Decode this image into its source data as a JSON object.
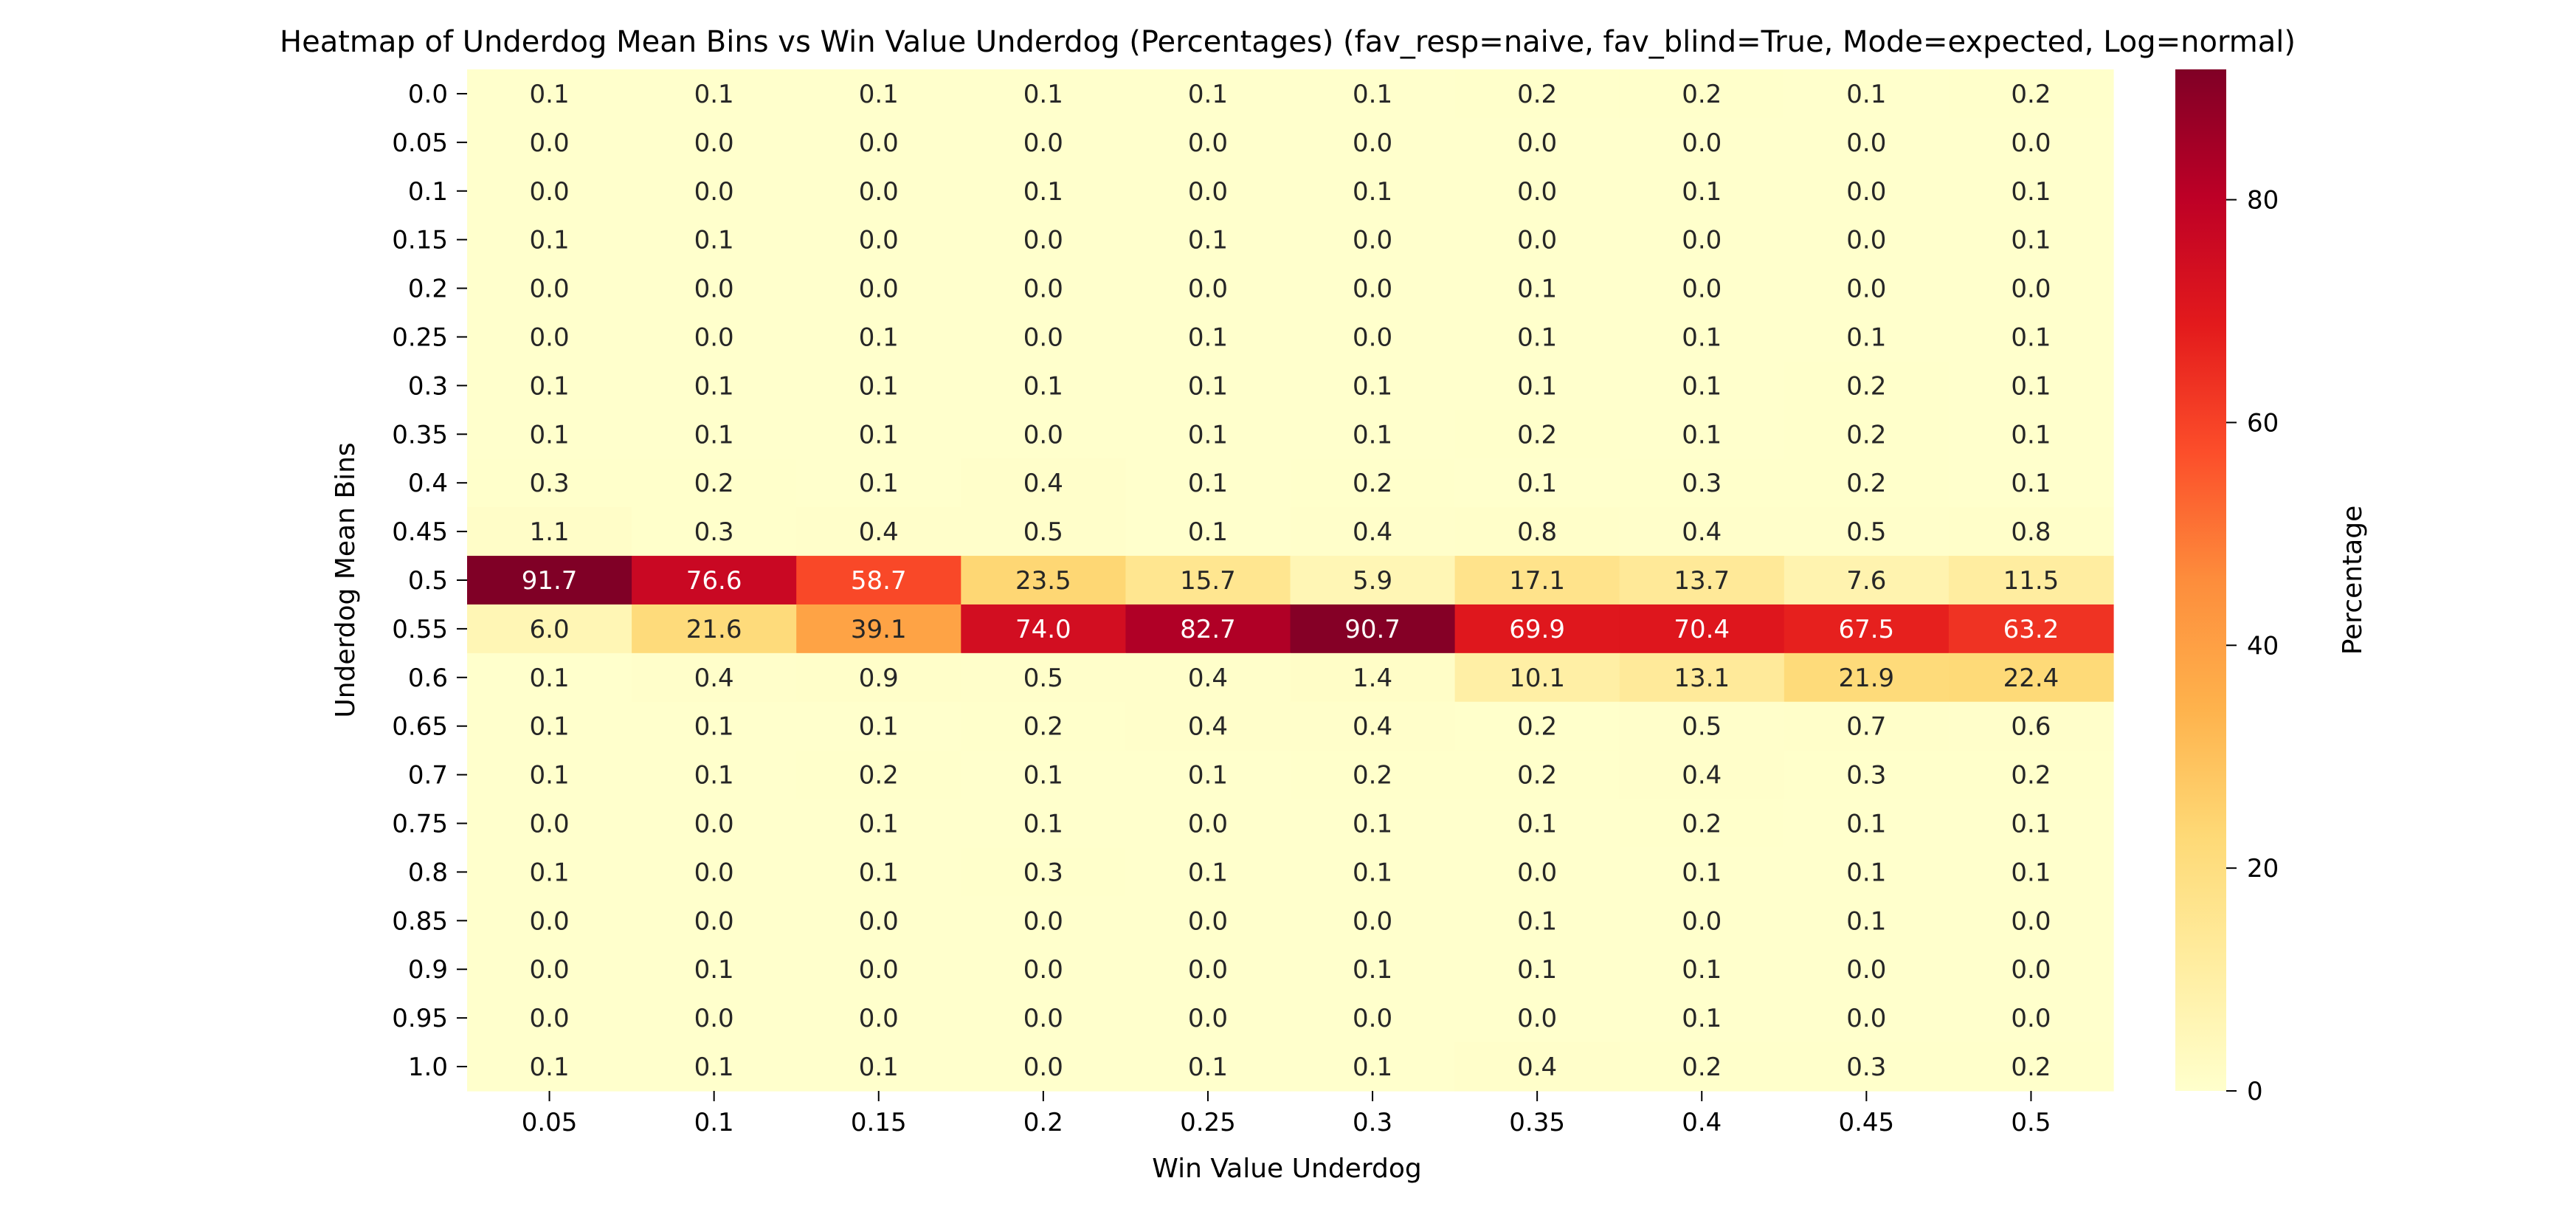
{
  "chart_data": {
    "type": "heatmap",
    "title": "Heatmap of Underdog Mean Bins vs Win Value Underdog (Percentages)  (fav_resp=naive, fav_blind=True, Mode=expected, Log=normal)",
    "xlabel": "Win Value Underdog",
    "ylabel": "Underdog Mean Bins",
    "x_categories": [
      "0.05",
      "0.1",
      "0.15",
      "0.2",
      "0.25",
      "0.3",
      "0.35",
      "0.4",
      "0.45",
      "0.5"
    ],
    "y_categories": [
      "0.0",
      "0.05",
      "0.1",
      "0.15",
      "0.2",
      "0.25",
      "0.3",
      "0.35",
      "0.4",
      "0.45",
      "0.5",
      "0.55",
      "0.6",
      "0.65",
      "0.7",
      "0.75",
      "0.8",
      "0.85",
      "0.9",
      "0.95",
      "1.0"
    ],
    "values": [
      [
        0.1,
        0.1,
        0.1,
        0.1,
        0.1,
        0.1,
        0.2,
        0.2,
        0.1,
        0.2
      ],
      [
        0.0,
        0.0,
        0.0,
        0.0,
        0.0,
        0.0,
        0.0,
        0.0,
        0.0,
        0.0
      ],
      [
        0.0,
        0.0,
        0.0,
        0.1,
        0.0,
        0.1,
        0.0,
        0.1,
        0.0,
        0.1
      ],
      [
        0.1,
        0.1,
        0.0,
        0.0,
        0.1,
        0.0,
        0.0,
        0.0,
        0.0,
        0.1
      ],
      [
        0.0,
        0.0,
        0.0,
        0.0,
        0.0,
        0.0,
        0.1,
        0.0,
        0.0,
        0.0
      ],
      [
        0.0,
        0.0,
        0.1,
        0.0,
        0.1,
        0.0,
        0.1,
        0.1,
        0.1,
        0.1
      ],
      [
        0.1,
        0.1,
        0.1,
        0.1,
        0.1,
        0.1,
        0.1,
        0.1,
        0.2,
        0.1
      ],
      [
        0.1,
        0.1,
        0.1,
        0.0,
        0.1,
        0.1,
        0.2,
        0.1,
        0.2,
        0.1
      ],
      [
        0.3,
        0.2,
        0.1,
        0.4,
        0.1,
        0.2,
        0.1,
        0.3,
        0.2,
        0.1
      ],
      [
        1.1,
        0.3,
        0.4,
        0.5,
        0.1,
        0.4,
        0.8,
        0.4,
        0.5,
        0.8
      ],
      [
        91.7,
        76.6,
        58.7,
        23.5,
        15.7,
        5.9,
        17.1,
        13.7,
        7.6,
        11.5
      ],
      [
        6.0,
        21.6,
        39.1,
        74.0,
        82.7,
        90.7,
        69.9,
        70.4,
        67.5,
        63.2
      ],
      [
        0.1,
        0.4,
        0.9,
        0.5,
        0.4,
        1.4,
        10.1,
        13.1,
        21.9,
        22.4
      ],
      [
        0.1,
        0.1,
        0.1,
        0.2,
        0.4,
        0.4,
        0.2,
        0.5,
        0.7,
        0.6
      ],
      [
        0.1,
        0.1,
        0.2,
        0.1,
        0.1,
        0.2,
        0.2,
        0.4,
        0.3,
        0.2
      ],
      [
        0.0,
        0.0,
        0.1,
        0.1,
        0.0,
        0.1,
        0.1,
        0.2,
        0.1,
        0.1
      ],
      [
        0.1,
        0.0,
        0.1,
        0.3,
        0.1,
        0.1,
        0.0,
        0.1,
        0.1,
        0.1
      ],
      [
        0.0,
        0.0,
        0.0,
        0.0,
        0.0,
        0.0,
        0.1,
        0.0,
        0.1,
        0.0
      ],
      [
        0.0,
        0.1,
        0.0,
        0.0,
        0.0,
        0.1,
        0.1,
        0.1,
        0.0,
        0.0
      ],
      [
        0.0,
        0.0,
        0.0,
        0.0,
        0.0,
        0.0,
        0.0,
        0.1,
        0.0,
        0.0
      ],
      [
        0.1,
        0.1,
        0.1,
        0.0,
        0.1,
        0.1,
        0.4,
        0.2,
        0.3,
        0.2
      ]
    ],
    "colormap": "YlOrRd",
    "colormap_stops": [
      "#ffffcc",
      "#ffeda0",
      "#fed976",
      "#feb24c",
      "#fd8d3c",
      "#fc4e2a",
      "#e31a1c",
      "#bd0026",
      "#800026"
    ],
    "color_range": [
      0,
      91.7
    ],
    "colorbar": {
      "label": "Percentage",
      "ticks": [
        0,
        20,
        40,
        60,
        80
      ],
      "tick_labels": [
        "0",
        "20",
        "40",
        "60",
        "80"
      ]
    },
    "annotations": "value per cell, one decimal",
    "grid": false,
    "legend": "colorbar right"
  }
}
